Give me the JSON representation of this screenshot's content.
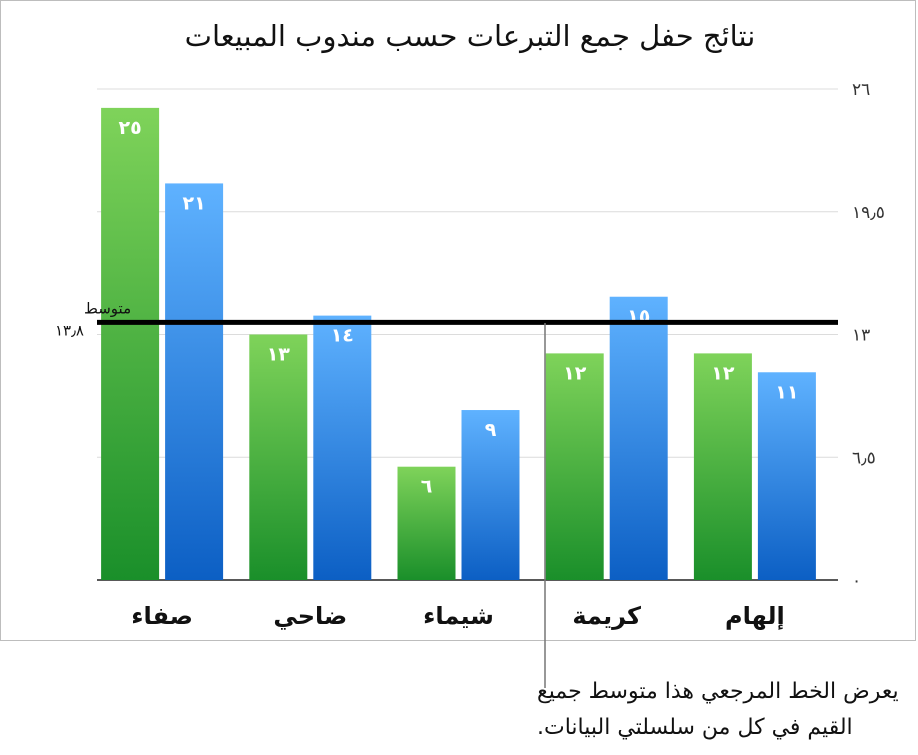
{
  "chart_data": {
    "type": "bar",
    "title": "نتائج حفل جمع التبرعات حسب مندوب المبيعات",
    "categories": [
      "صفاء",
      "ضاحي",
      "شيماء",
      "كريمة",
      "إلهام"
    ],
    "series": [
      {
        "values": [
          25,
          13,
          6,
          12,
          12
        ],
        "labels": [
          "٢٥",
          "١٣",
          "٦",
          "١٢",
          "١٢"
        ],
        "color_top": "#7fd35a",
        "color_bottom": "#1a8f2a"
      },
      {
        "values": [
          21,
          14,
          9,
          15,
          11
        ],
        "labels": [
          "٢١",
          "١٤",
          "٩",
          "١٥",
          "١١"
        ],
        "color_top": "#5fb2ff",
        "color_bottom": "#0c5fc4"
      }
    ],
    "ylim": [
      0,
      26
    ],
    "yticks": [
      0,
      6.5,
      13,
      19.5,
      26
    ],
    "ytick_labels": [
      "٠",
      "٦٫٥",
      "١٣",
      "١٩٫٥",
      "٢٦"
    ],
    "y_axis_side": "right",
    "grid": true,
    "reference_line": {
      "value": 13.8,
      "label_line1": "متوسط",
      "label_line2": "١٣٫٨"
    }
  },
  "callout": {
    "line1": "يعرض الخط المرجعي هذا متوسط جميع",
    "line2": "القيم في كل من سلسلتي البيانات."
  }
}
